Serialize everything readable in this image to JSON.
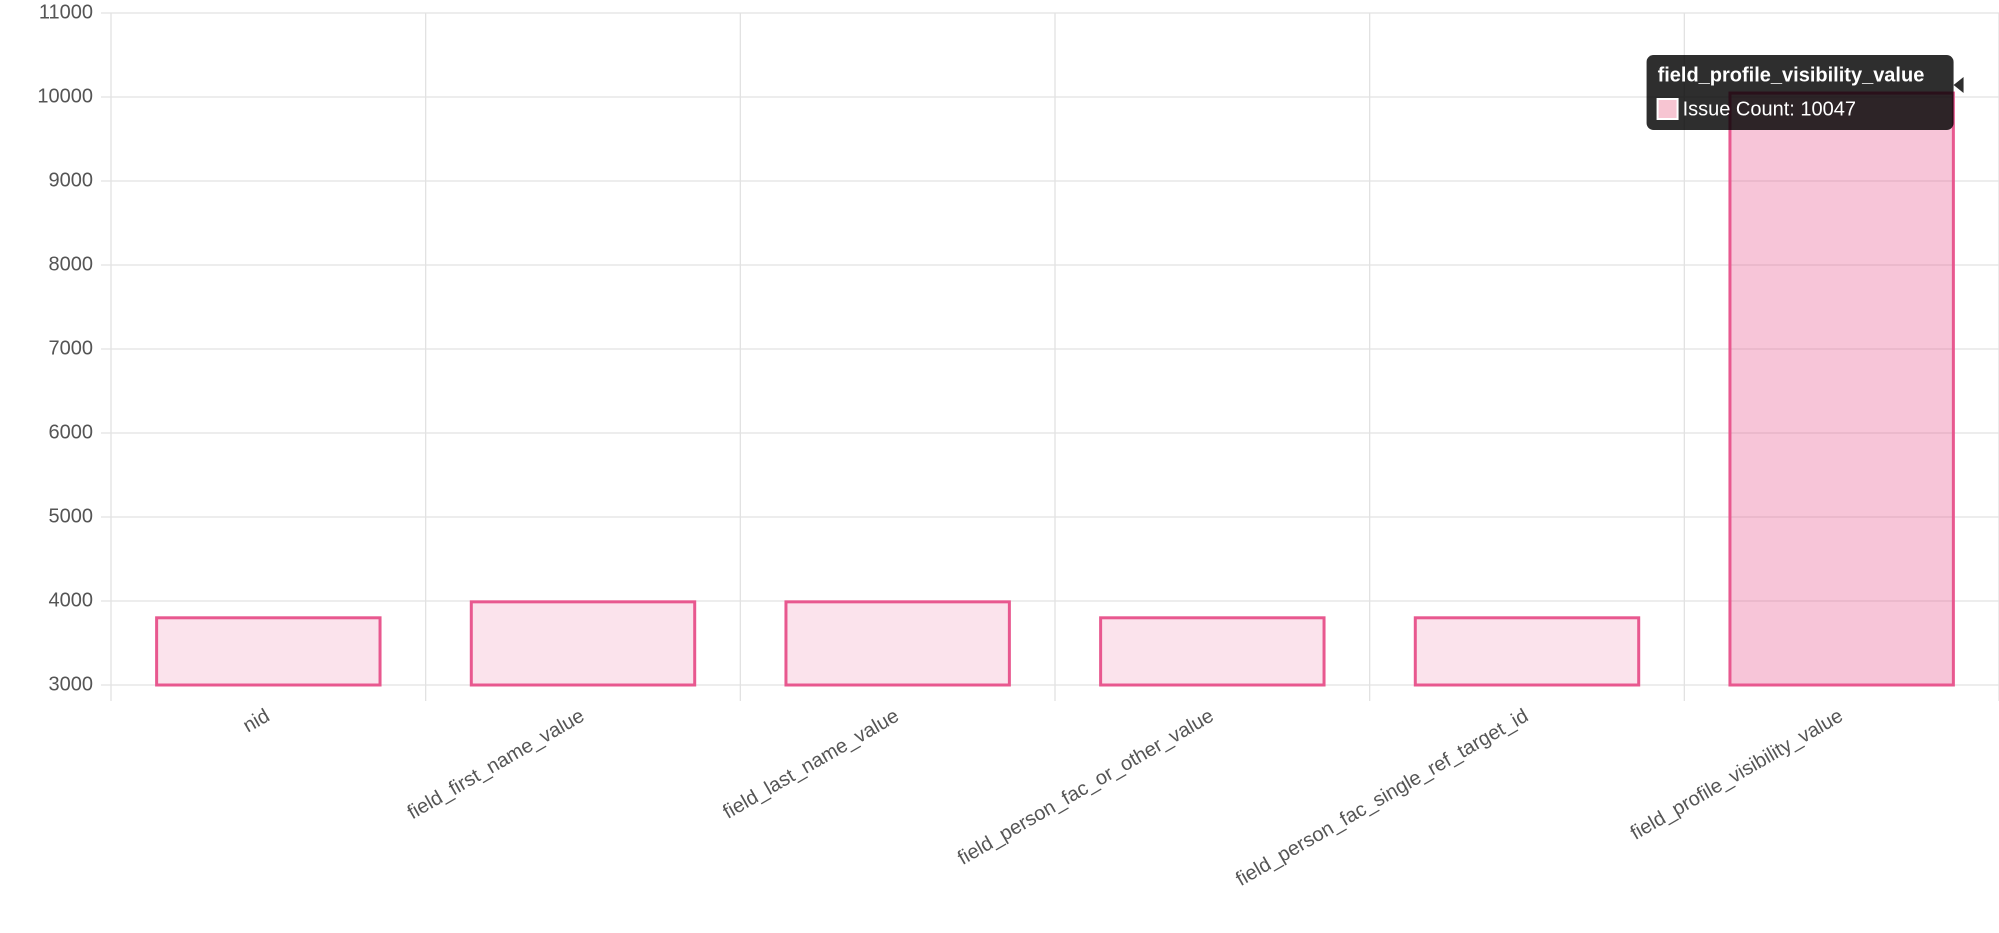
{
  "chart_data": {
    "type": "bar",
    "categories": [
      "nid",
      "field_first_name_value",
      "field_last_name_value",
      "field_person_fac_or_other_value",
      "field_person_fac_single_ref_target_id",
      "field_profile_visibility_value"
    ],
    "series": [
      {
        "name": "Issue Count",
        "color": "#e8588f",
        "values": [
          3800,
          3990,
          3990,
          3800,
          3800,
          10047
        ]
      }
    ],
    "ylim": [
      3000,
      11000
    ],
    "yticks": [
      3000,
      4000,
      5000,
      6000,
      7000,
      8000,
      9000,
      10000,
      11000
    ],
    "grid": true,
    "tooltip": {
      "title": "field_profile_visibility_value",
      "label": "Issue Count: 10047"
    }
  }
}
